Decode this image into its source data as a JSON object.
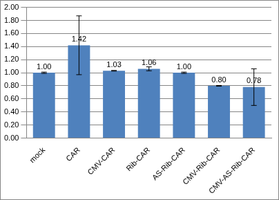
{
  "chart_data": {
    "type": "bar",
    "categories": [
      "mock",
      "CAR",
      "CMV-CAR",
      "Rib-CAR",
      "AS-Rib-CAR",
      "CMV-Rib-CAR",
      "CMV-AS-Rib-CAR"
    ],
    "values": [
      1.0,
      1.42,
      1.03,
      1.06,
      1.0,
      0.8,
      0.78
    ],
    "value_labels": [
      "1.00",
      "1.42",
      "1.03",
      "1.06",
      "1.00",
      "0.80",
      "0.78"
    ],
    "errors": [
      0.01,
      0.45,
      0.005,
      0.03,
      0.01,
      0.005,
      0.28
    ],
    "color": "#4f81bd",
    "ylim": [
      0,
      2
    ],
    "yticks": [
      {
        "value": 0,
        "label": "0.00"
      },
      {
        "value": 0.2,
        "label": "0.20"
      },
      {
        "value": 0.4,
        "label": "0.40"
      },
      {
        "value": 0.6,
        "label": "0.60"
      },
      {
        "value": 0.8,
        "label": "0.80"
      },
      {
        "value": 1.0,
        "label": "1.00"
      },
      {
        "value": 1.2,
        "label": "1.20"
      },
      {
        "value": 1.4,
        "label": "1.40"
      },
      {
        "value": 1.6,
        "label": "1.60"
      },
      {
        "value": 1.8,
        "label": "1.80"
      },
      {
        "value": 2.0,
        "label": "2.00"
      }
    ],
    "grid": true,
    "data_labels": true
  }
}
